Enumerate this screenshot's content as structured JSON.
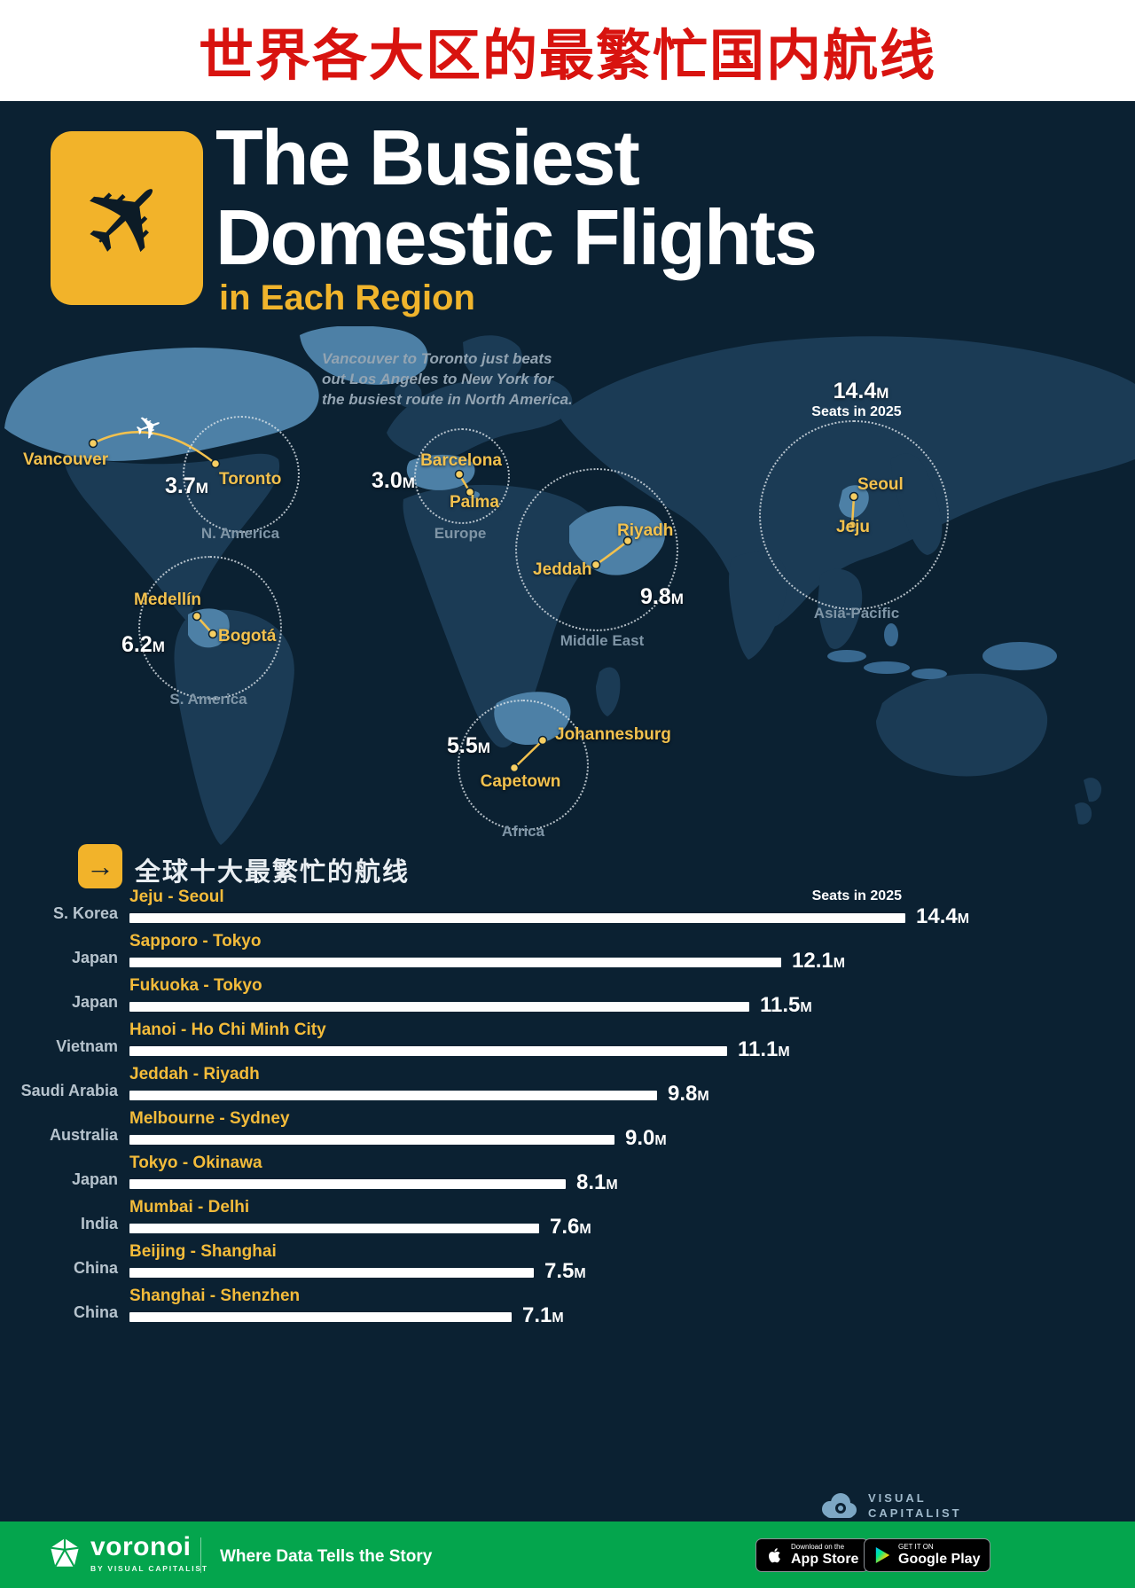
{
  "banner": {
    "title": "世界各大区的最繁忙国内航线"
  },
  "header": {
    "title_line1": "The Busiest",
    "title_line2": "Domestic Flights",
    "subtitle": "in Each Region"
  },
  "icons": {
    "plane": "✈",
    "arrow": "→"
  },
  "map": {
    "annotation": "Vancouver to Toronto just beats out Los Angeles to New York for the busiest route in North America.",
    "regions": [
      {
        "name": "N. America",
        "cities": [
          "Vancouver",
          "Toronto"
        ],
        "value_num": "3.7",
        "value_suffix": "M"
      },
      {
        "name": "Europe",
        "cities": [
          "Barcelona",
          "Palma"
        ],
        "value_num": "3.0",
        "value_suffix": "M"
      },
      {
        "name": "Middle East",
        "cities": [
          "Jeddah",
          "Riyadh"
        ],
        "value_num": "9.8",
        "value_suffix": "M"
      },
      {
        "name": "Asia-Pacific",
        "cities": [
          "Seoul",
          "Jeju"
        ],
        "value_num": "14.4",
        "value_suffix": "M",
        "note": "Seats in 2025"
      },
      {
        "name": "S. America",
        "cities": [
          "Medellín",
          "Bogotá"
        ],
        "value_num": "6.2",
        "value_suffix": "M"
      },
      {
        "name": "Africa",
        "cities": [
          "Johannesburg",
          "Capetown"
        ],
        "value_num": "5.5",
        "value_suffix": "M"
      }
    ]
  },
  "chart_section": {
    "heading": "全球十大最繁忙的航线",
    "axis_note": "Seats in 2025"
  },
  "chart_data": {
    "type": "bar",
    "orientation": "horizontal",
    "title": "全球十大最繁忙的航线",
    "axis_note": "Seats in 2025",
    "value_unit": "million seats in 2025",
    "max_value": 14.4,
    "rows": [
      {
        "country": "S. Korea",
        "route": "Jeju - Seoul",
        "value": 14.4,
        "num": "14.4",
        "suffix": "M"
      },
      {
        "country": "Japan",
        "route": "Sapporo - Tokyo",
        "value": 12.1,
        "num": "12.1",
        "suffix": "M"
      },
      {
        "country": "Japan",
        "route": "Fukuoka - Tokyo",
        "value": 11.5,
        "num": "11.5",
        "suffix": "M"
      },
      {
        "country": "Vietnam",
        "route": "Hanoi - Ho Chi Minh City",
        "value": 11.1,
        "num": "11.1",
        "suffix": "M"
      },
      {
        "country": "Saudi Arabia",
        "route": "Jeddah - Riyadh",
        "value": 9.8,
        "num": "9.8",
        "suffix": "M"
      },
      {
        "country": "Australia",
        "route": "Melbourne - Sydney",
        "value": 9.0,
        "num": "9.0",
        "suffix": "M"
      },
      {
        "country": "Japan",
        "route": "Tokyo - Okinawa",
        "value": 8.1,
        "num": "8.1",
        "suffix": "M"
      },
      {
        "country": "India",
        "route": "Mumbai - Delhi",
        "value": 7.6,
        "num": "7.6",
        "suffix": "M"
      },
      {
        "country": "China",
        "route": "Beijing - Shanghai",
        "value": 7.5,
        "num": "7.5",
        "suffix": "M"
      },
      {
        "country": "China",
        "route": "Shanghai - Shenzhen",
        "value": 7.1,
        "num": "7.1",
        "suffix": "M"
      }
    ]
  },
  "footer": {
    "brand": "voronoi",
    "brand_sub": "BY VISUAL CAPITALIST",
    "tagline": "Where Data Tells the Story",
    "appstore_line1": "Download on the",
    "appstore_line2": "App Store",
    "googleplay_line1": "GET IT ON",
    "googleplay_line2": "Google Play"
  },
  "credits": {
    "line1": "VISUAL",
    "line2": "CAPITALIST"
  }
}
